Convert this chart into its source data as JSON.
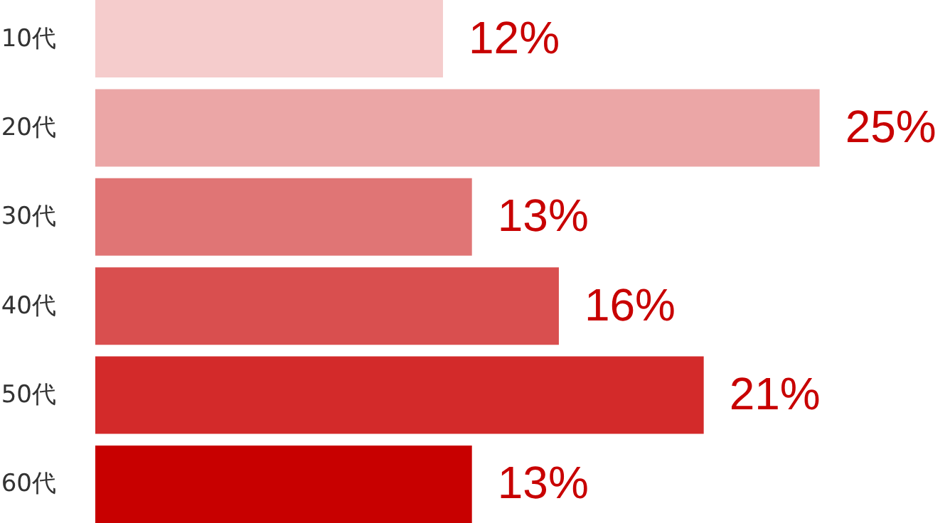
{
  "chart_data": {
    "type": "bar",
    "orientation": "horizontal",
    "categories": [
      "10代",
      "20代",
      "30代",
      "40代",
      "50代",
      "60代"
    ],
    "values": [
      12,
      25,
      13,
      16,
      21,
      13
    ],
    "colors": [
      "#f5cccc",
      "#eba6a6",
      "#e07575",
      "#d94f4f",
      "#d32a2a",
      "#c80000"
    ],
    "value_labels": [
      "12%",
      "25%",
      "13%",
      "16%",
      "21%",
      "13%"
    ],
    "grid": false
  }
}
